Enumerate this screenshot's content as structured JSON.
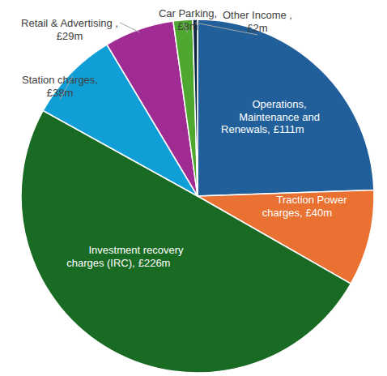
{
  "chart_data": {
    "type": "pie",
    "categories": [
      "Operations, Maintenance and Renewals,",
      "Traction Power charges,",
      "Investment recovery charges (IRC),",
      "Station charges,",
      "Retail & Advertising ,",
      "Car Parking,",
      "Other Income ,"
    ],
    "values": [
      111,
      40,
      226,
      38,
      29,
      8,
      2
    ],
    "value_labels": [
      "£111m",
      "£40m",
      "£226m",
      "£38m",
      "£29m",
      "£8m",
      "£2m"
    ],
    "colors": [
      "#215f9a",
      "#e97132",
      "#196b24",
      "#0f9ed5",
      "#a02b93",
      "#4ea72e",
      "#0e2841"
    ],
    "data_labels": true
  }
}
